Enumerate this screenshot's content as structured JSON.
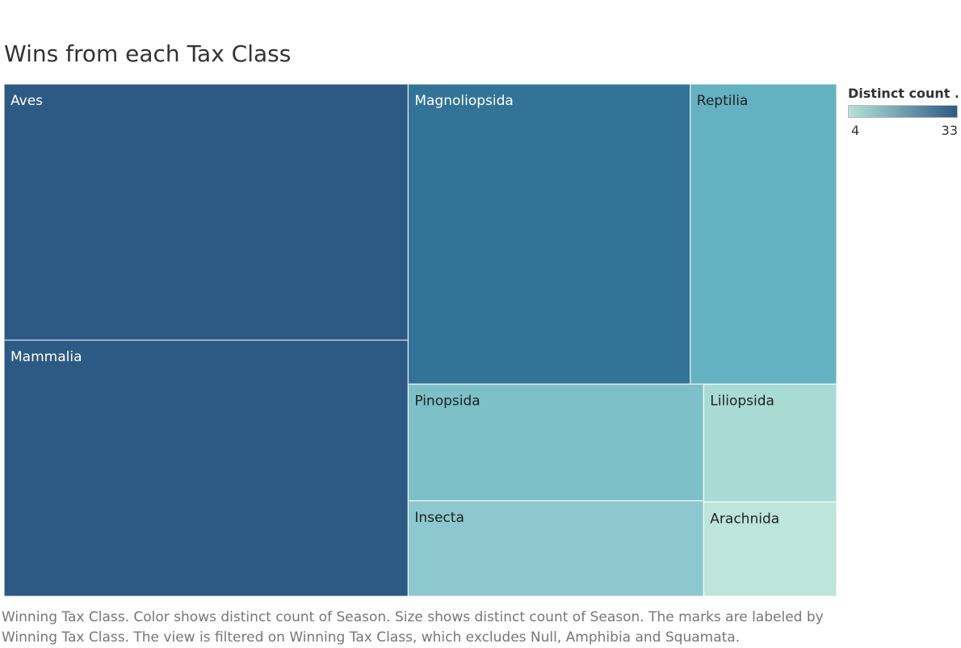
{
  "title": "Wins from each Tax Class",
  "legend": {
    "title": "Distinct count ..",
    "min_label": "4",
    "max_label": "33",
    "min_color": "#b4e3d8",
    "max_color": "#2d5985"
  },
  "caption": "Winning Tax Class.  Color shows distinct count of Season.  Size shows distinct count of Season.  The marks are labeled by Winning Tax Class. The view is filtered on Winning Tax Class, which excludes Null, Amphibia and Squamata.",
  "chart_data": {
    "type": "treemap",
    "title": "Wins from each Tax Class",
    "measure": "Distinct count of Season",
    "items": [
      {
        "label": "Aves",
        "value": 33,
        "color": "#2d5985",
        "label_color": "#ffffff"
      },
      {
        "label": "Mammalia",
        "value": 33,
        "color": "#2d5985",
        "label_color": "#ffffff"
      },
      {
        "label": "Magnoliopsida",
        "value": 27,
        "color": "#337397",
        "label_color": "#ffffff"
      },
      {
        "label": "Reptilia",
        "value": 14,
        "color": "#64b1c2",
        "label_color": "#222222"
      },
      {
        "label": "Pinopsida",
        "value": 11,
        "color": "#7dc0c8",
        "label_color": "#222222"
      },
      {
        "label": "Insecta",
        "value": 9,
        "color": "#8cc8ce",
        "label_color": "#222222"
      },
      {
        "label": "Liliopsida",
        "value": 5,
        "color": "#a9dbd5",
        "label_color": "#222222"
      },
      {
        "label": "Arachnida",
        "value": 4,
        "color": "#bde5da",
        "label_color": "#222222"
      }
    ]
  }
}
